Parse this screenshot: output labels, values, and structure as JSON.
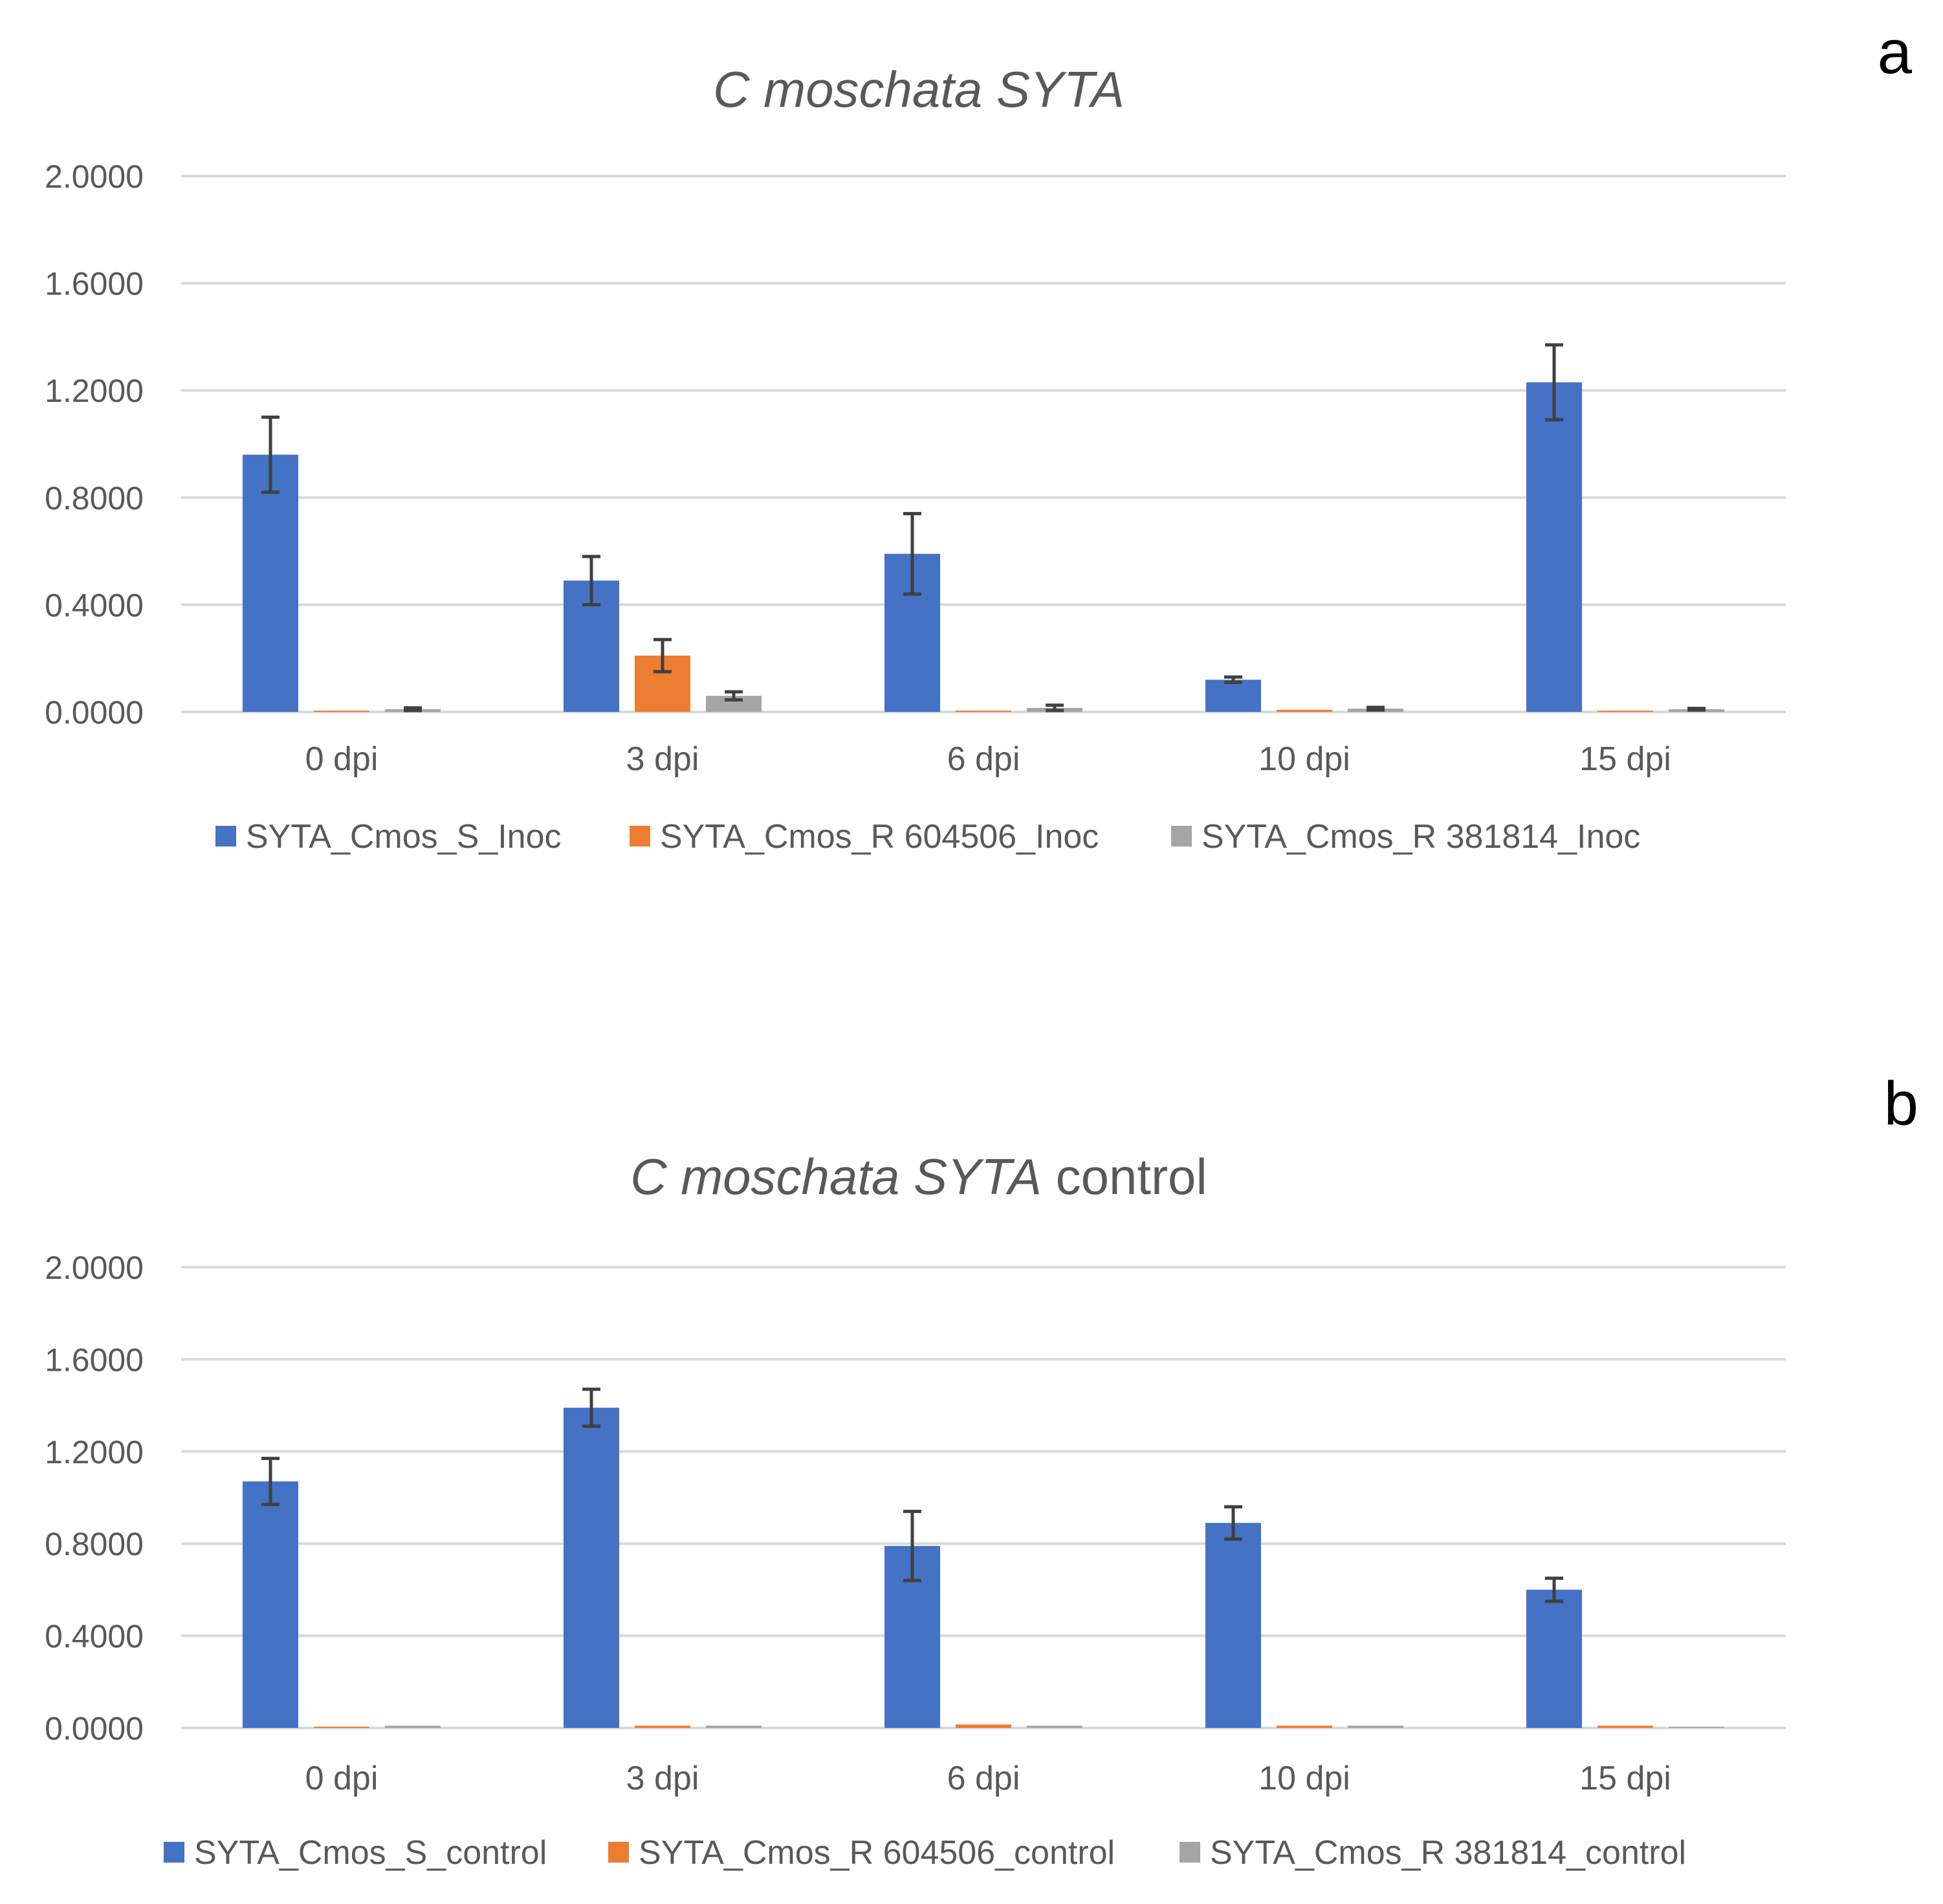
{
  "chart_data": [
    {
      "panel_label": "a",
      "type": "bar",
      "title_italic": "C moschata SYTA",
      "title_plain": "",
      "categories": [
        "0 dpi",
        "3 dpi",
        "6 dpi",
        "10 dpi",
        "15 dpi"
      ],
      "ylim": [
        0,
        2.0
      ],
      "yticks": [
        0,
        0.4,
        0.8,
        1.2,
        1.6,
        2.0
      ],
      "ytick_labels": [
        "0.0000",
        "0.4000",
        "0.8000",
        "1.2000",
        "1.6000",
        "2.0000"
      ],
      "grid": true,
      "legend_position": "bottom",
      "series": [
        {
          "name": "SYTA_Cmos_S_Inoc",
          "color": "#4472C4",
          "values": [
            0.96,
            0.49,
            0.59,
            0.12,
            1.23
          ],
          "errors": [
            0.14,
            0.09,
            0.15,
            0.01,
            0.14
          ]
        },
        {
          "name": "SYTA_Cmos_R 604506_Inoc",
          "color": "#ED7D31",
          "values": [
            0.003,
            0.21,
            0.003,
            0.008,
            0.003
          ],
          "errors": [
            0.0,
            0.06,
            0.0,
            0.0,
            0.0
          ]
        },
        {
          "name": "SYTA_Cmos_R 381814_Inoc",
          "color": "#A5A5A5",
          "values": [
            0.01,
            0.06,
            0.015,
            0.012,
            0.01
          ],
          "errors": [
            0.005,
            0.015,
            0.01,
            0.005,
            0.003
          ]
        }
      ]
    },
    {
      "panel_label": "b",
      "type": "bar",
      "title_italic": "C moschata SYTA",
      "title_plain": " control",
      "categories": [
        "0 dpi",
        "3 dpi",
        "6 dpi",
        "10 dpi",
        "15 dpi"
      ],
      "ylim": [
        0,
        2.0
      ],
      "yticks": [
        0,
        0.4,
        0.8,
        1.2,
        1.6,
        2.0
      ],
      "ytick_labels": [
        "0.0000",
        "0.4000",
        "0.8000",
        "1.2000",
        "1.6000",
        "2.0000"
      ],
      "grid": true,
      "legend_position": "bottom",
      "series": [
        {
          "name": "SYTA_Cmos_S_control",
          "color": "#4472C4",
          "values": [
            1.07,
            1.39,
            0.79,
            0.89,
            0.6
          ],
          "errors": [
            0.1,
            0.08,
            0.15,
            0.07,
            0.05
          ]
        },
        {
          "name": "SYTA_Cmos_R 604506_control",
          "color": "#ED7D31",
          "values": [
            0.0,
            0.01,
            0.015,
            0.01,
            0.01
          ],
          "errors": [
            0,
            0,
            0,
            0,
            0
          ]
        },
        {
          "name": "SYTA_Cmos_R 381814_control",
          "color": "#A5A5A5",
          "values": [
            0.01,
            0.01,
            0.01,
            0.01,
            0.0
          ],
          "errors": [
            0,
            0,
            0,
            0,
            0
          ]
        }
      ]
    }
  ]
}
